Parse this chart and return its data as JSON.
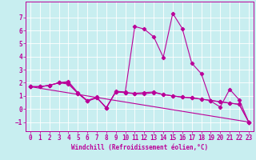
{
  "background_color": "#c8eef0",
  "line_color": "#bb0099",
  "grid_color": "#ffffff",
  "xlabel": "Windchill (Refroidissement éolien,°C)",
  "xlabel_fontsize": 5.5,
  "tick_fontsize": 5.5,
  "xlim": [
    -0.5,
    23.5
  ],
  "ylim": [
    -1.7,
    8.2
  ],
  "yticks": [
    -1,
    0,
    1,
    2,
    3,
    4,
    5,
    6,
    7
  ],
  "xticks": [
    0,
    1,
    2,
    3,
    4,
    5,
    6,
    7,
    8,
    9,
    10,
    11,
    12,
    13,
    14,
    15,
    16,
    17,
    18,
    19,
    20,
    21,
    22,
    23
  ],
  "series_main_x": [
    0,
    1,
    2,
    3,
    4,
    5,
    6,
    7,
    8,
    9,
    10,
    11,
    12,
    13,
    14,
    15,
    16,
    17,
    18,
    19,
    20,
    21,
    22,
    23
  ],
  "series_main_y": [
    1.7,
    1.7,
    1.8,
    2.0,
    2.1,
    1.25,
    0.65,
    0.9,
    0.05,
    1.35,
    1.3,
    6.3,
    6.1,
    5.5,
    3.95,
    7.3,
    6.15,
    3.5,
    2.7,
    0.6,
    0.15,
    1.5,
    0.7,
    -1.0
  ],
  "series_low1_x": [
    0,
    1,
    2,
    3,
    4,
    5,
    6,
    7,
    8,
    9,
    10,
    11,
    12,
    13,
    14,
    15,
    16,
    17,
    18,
    19,
    20,
    21,
    22,
    23
  ],
  "series_low1_y": [
    1.7,
    1.7,
    1.8,
    2.0,
    1.9,
    1.2,
    0.6,
    0.85,
    0.1,
    1.3,
    1.25,
    1.15,
    1.15,
    1.25,
    1.1,
    1.0,
    0.9,
    0.85,
    0.75,
    0.65,
    0.55,
    0.45,
    0.35,
    -1.0
  ],
  "series_low2_x": [
    0,
    1,
    2,
    3,
    4,
    5,
    6,
    7,
    8,
    9,
    10,
    11,
    12,
    13,
    14,
    15,
    16,
    17,
    18,
    19,
    20,
    21,
    22,
    23
  ],
  "series_low2_y": [
    1.7,
    1.7,
    1.8,
    2.0,
    2.0,
    1.2,
    0.6,
    0.85,
    0.1,
    1.3,
    1.25,
    1.2,
    1.25,
    1.3,
    1.1,
    1.0,
    0.9,
    0.85,
    0.75,
    0.65,
    0.55,
    0.45,
    0.35,
    -1.0
  ],
  "series_line_x": [
    0,
    23
  ],
  "series_line_y": [
    1.7,
    -1.0
  ]
}
